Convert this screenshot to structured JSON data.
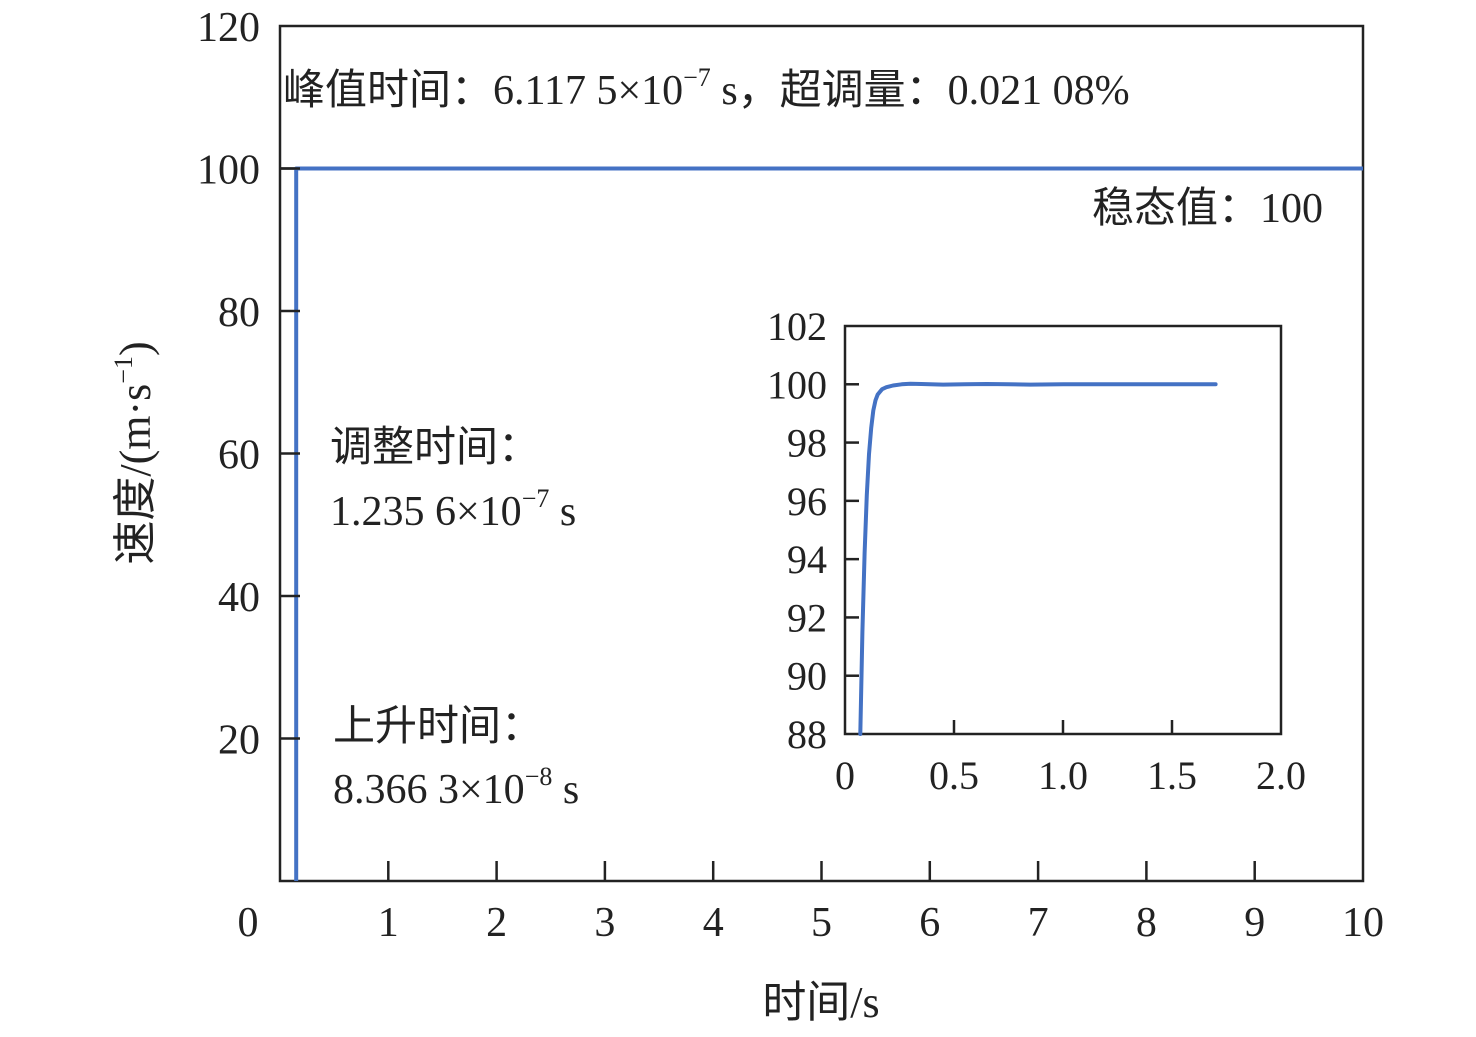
{
  "chart_data": [
    {
      "type": "line",
      "xlabel": "时间/s",
      "ylabel": "速度/(m·s",
      "ylabel_sup": "−1",
      "ylabel_close": ")",
      "xlim": [
        0,
        10
      ],
      "ylim": [
        0,
        120
      ],
      "x_ticks": [
        0,
        1,
        2,
        3,
        4,
        5,
        6,
        7,
        8,
        9,
        10
      ],
      "y_ticks": [
        20,
        40,
        60,
        80,
        100,
        120
      ],
      "grid": false,
      "series": [
        {
          "color": "#4472c4",
          "x": [
            0.15,
            0.15,
            10
          ],
          "y": [
            0,
            100,
            100
          ]
        }
      ],
      "reference_line": {
        "y": 100,
        "style": "dash-dot",
        "color": "#555555"
      },
      "annotation_box": {
        "y_from": 100,
        "y_to": 120
      },
      "annotations": {
        "peak": {
          "pre": "峰值时间：6.117 5×10",
          "sup": "−7",
          "post": " s，超调量：0.021 08%"
        },
        "steady": "稳态值：100",
        "settle_label": "调整时间：",
        "settle_value": {
          "pre": "1.235 6×10",
          "sup": "−7",
          "post": " s"
        },
        "rise_label": "上升时间：",
        "rise_value": {
          "pre": "8.366 3×10",
          "sup": "−8",
          "post": " s"
        }
      }
    },
    {
      "type": "line",
      "xlim": [
        0,
        2
      ],
      "ylim": [
        88,
        102
      ],
      "x_ticks": [
        "0",
        "0.5",
        "1.0",
        "1.5",
        "2.0"
      ],
      "x_tick_values": [
        0,
        0.5,
        1,
        1.5,
        2
      ],
      "y_ticks": [
        88,
        90,
        92,
        94,
        96,
        98,
        100,
        102
      ],
      "grid": false,
      "series": [
        {
          "color": "#4472c4",
          "x": [
            0.07,
            0.08,
            0.09,
            0.1,
            0.11,
            0.12,
            0.13,
            0.14,
            0.15,
            0.17,
            0.19,
            0.22,
            0.26,
            0.3,
            0.35,
            0.45,
            0.55,
            0.65,
            0.75,
            0.85,
            1.0,
            1.2,
            1.4,
            1.6,
            1.7
          ],
          "y": [
            88,
            91.5,
            94.2,
            96.2,
            97.6,
            98.5,
            99.1,
            99.45,
            99.65,
            99.83,
            99.9,
            99.96,
            100.0,
            100.02,
            100.01,
            99.99,
            100.0,
            100.01,
            100.0,
            99.99,
            100.0,
            100.0,
            100.0,
            100.0,
            100.0
          ]
        }
      ]
    }
  ]
}
